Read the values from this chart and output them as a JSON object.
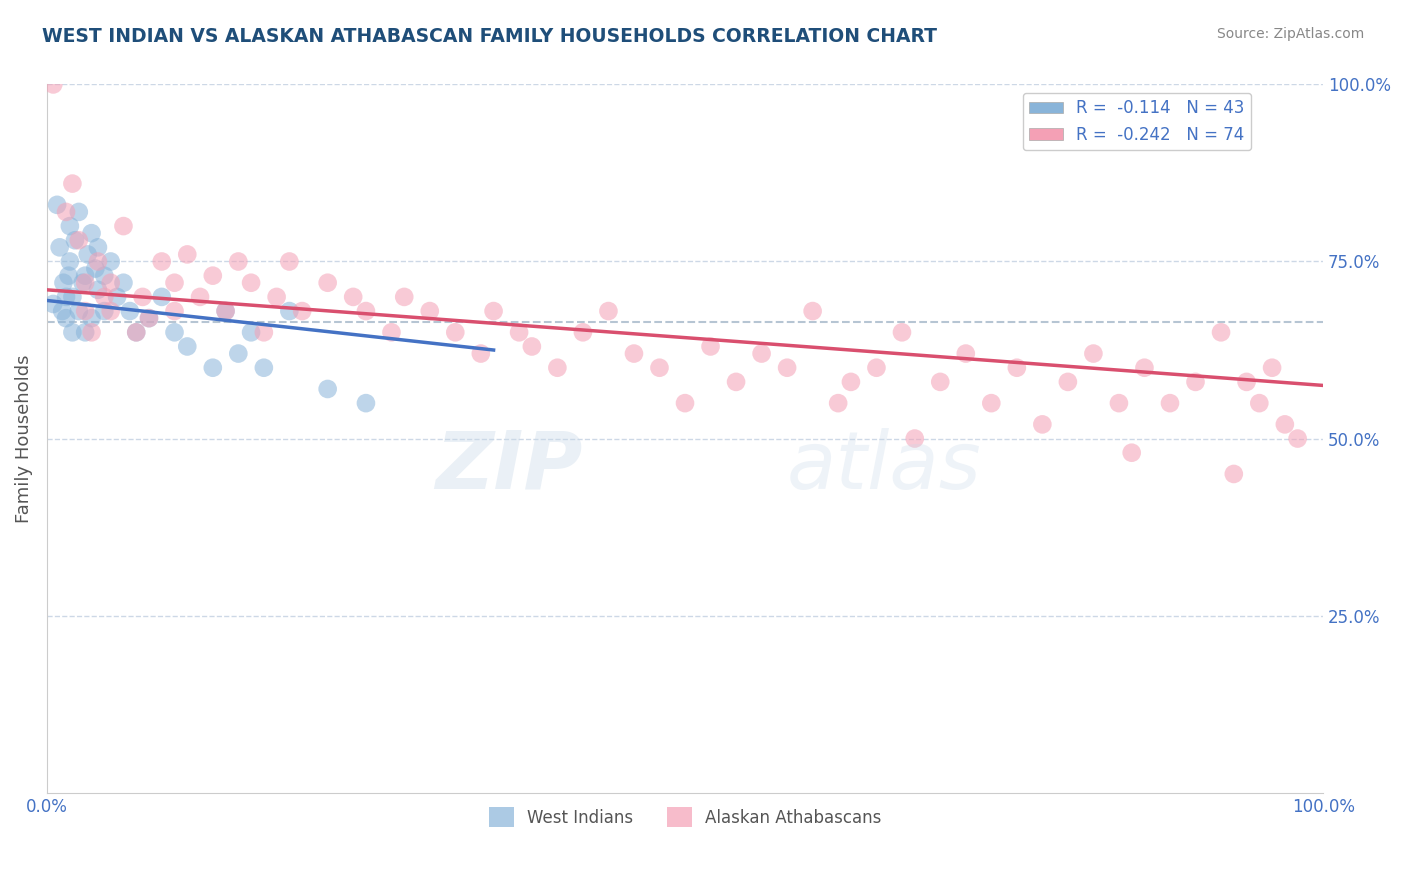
{
  "title": "WEST INDIAN VS ALASKAN ATHABASCAN FAMILY HOUSEHOLDS CORRELATION CHART",
  "source": "Source: ZipAtlas.com",
  "ylabel": "Family Households",
  "xlim": [
    0.0,
    100.0
  ],
  "ylim": [
    0.0,
    100.0
  ],
  "blue_R": -0.114,
  "blue_N": 43,
  "pink_R": -0.242,
  "pink_N": 74,
  "blue_color": "#89b4d9",
  "pink_color": "#f4a0b5",
  "blue_line_color": "#4472c4",
  "pink_line_color": "#d94f6e",
  "dashed_line_color": "#aabbcc",
  "legend_label_blue": "West Indians",
  "legend_label_pink": "Alaskan Athabascans",
  "title_color": "#1f4e79",
  "source_color": "#888888",
  "axis_label_color": "#555555",
  "tick_label_color": "#4472c4",
  "grid_color": "#c8d4e4",
  "background_color": "#ffffff",
  "blue_x": [
    0.5,
    0.8,
    1.0,
    1.2,
    1.3,
    1.5,
    1.5,
    1.7,
    1.8,
    1.8,
    2.0,
    2.0,
    2.2,
    2.5,
    2.5,
    2.8,
    3.0,
    3.0,
    3.2,
    3.5,
    3.5,
    3.8,
    4.0,
    4.0,
    4.5,
    4.5,
    5.0,
    5.5,
    6.0,
    6.5,
    7.0,
    8.0,
    9.0,
    10.0,
    11.0,
    13.0,
    14.0,
    15.0,
    16.0,
    17.0,
    19.0,
    22.0,
    25.0
  ],
  "blue_y": [
    69,
    83,
    77,
    68,
    72,
    67,
    70,
    73,
    75,
    80,
    65,
    70,
    78,
    68,
    82,
    72,
    65,
    73,
    76,
    67,
    79,
    74,
    71,
    77,
    68,
    73,
    75,
    70,
    72,
    68,
    65,
    67,
    70,
    65,
    63,
    60,
    68,
    62,
    65,
    60,
    68,
    57,
    55
  ],
  "pink_x": [
    0.5,
    1.5,
    2.0,
    2.5,
    3.0,
    3.0,
    3.5,
    4.0,
    4.5,
    5.0,
    5.0,
    6.0,
    7.0,
    7.5,
    8.0,
    9.0,
    10.0,
    10.0,
    11.0,
    12.0,
    13.0,
    14.0,
    15.0,
    16.0,
    17.0,
    18.0,
    19.0,
    20.0,
    22.0,
    24.0,
    25.0,
    27.0,
    28.0,
    30.0,
    32.0,
    34.0,
    35.0,
    37.0,
    38.0,
    40.0,
    42.0,
    44.0,
    46.0,
    48.0,
    50.0,
    52.0,
    54.0,
    56.0,
    58.0,
    60.0,
    62.0,
    63.0,
    65.0,
    67.0,
    68.0,
    70.0,
    72.0,
    74.0,
    76.0,
    78.0,
    80.0,
    82.0,
    84.0,
    85.0,
    86.0,
    88.0,
    90.0,
    92.0,
    93.0,
    94.0,
    95.0,
    96.0,
    97.0,
    98.0
  ],
  "pink_y": [
    100,
    82,
    86,
    78,
    68,
    72,
    65,
    75,
    70,
    72,
    68,
    80,
    65,
    70,
    67,
    75,
    68,
    72,
    76,
    70,
    73,
    68,
    75,
    72,
    65,
    70,
    75,
    68,
    72,
    70,
    68,
    65,
    70,
    68,
    65,
    62,
    68,
    65,
    63,
    60,
    65,
    68,
    62,
    60,
    55,
    63,
    58,
    62,
    60,
    68,
    55,
    58,
    60,
    65,
    50,
    58,
    62,
    55,
    60,
    52,
    58,
    62,
    55,
    48,
    60,
    55,
    58,
    65,
    45,
    58,
    55,
    60,
    52,
    50
  ],
  "blue_line_x": [
    0,
    35
  ],
  "blue_line_y": [
    69.5,
    62.5
  ],
  "pink_line_x": [
    0,
    100
  ],
  "pink_line_y": [
    71.0,
    57.5
  ],
  "dash_line_y": 66.5,
  "dash_line_x0": 0,
  "dash_line_x1": 100
}
